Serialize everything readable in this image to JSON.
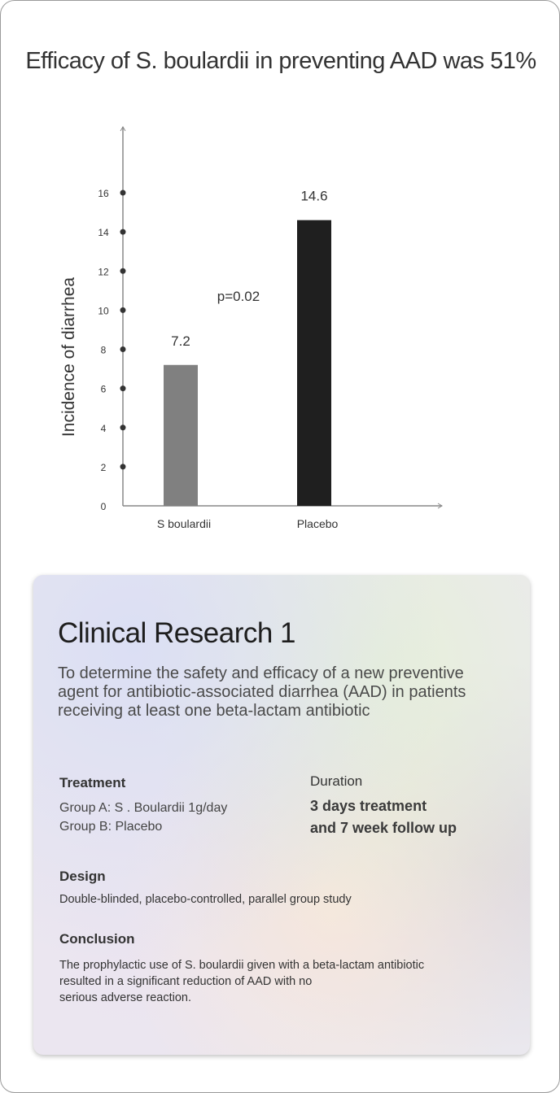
{
  "chart_data": {
    "type": "bar",
    "title": "Efficacy of S. boulardii in preventing AAD was 51%",
    "categories": [
      "S boulardii",
      "Placebo"
    ],
    "values": [
      7.2,
      14.6
    ],
    "data_labels": [
      "7.2",
      "14.6"
    ],
    "bar_colors": [
      "#808080",
      "#1f1f1f"
    ],
    "xlabel": "",
    "ylabel": "Incidence of diarrhea",
    "yticks": [
      0,
      2,
      4,
      6,
      8,
      10,
      12,
      14,
      16
    ],
    "ylim": [
      0,
      16
    ],
    "grid": false,
    "annotation": "p=0.02"
  },
  "card": {
    "title": "Clinical Research 1",
    "intro": "To determine the safety and efficacy of a new preventive agent for antibiotic-associated diarrhea (AAD) in patients receiving at least one beta-lactam antibiotic",
    "treatment_label": "Treatment",
    "treatment_a": "Group A: S . Boulardii 1g/day",
    "treatment_b": "Group B: Placebo",
    "duration_label": "Duration",
    "duration_1": "3 days treatment",
    "duration_2": "and 7 week follow up",
    "design_label": "Design",
    "design_text": "Double-blinded, placebo-controlled, parallel group study",
    "conclusion_label": "Conclusion",
    "conclusion_1": "The prophylactic use of S. boulardii given with a beta-lactam antibiotic",
    "conclusion_2": "resulted in a significant reduction of AAD with no",
    "conclusion_3": "serious adverse reaction."
  }
}
